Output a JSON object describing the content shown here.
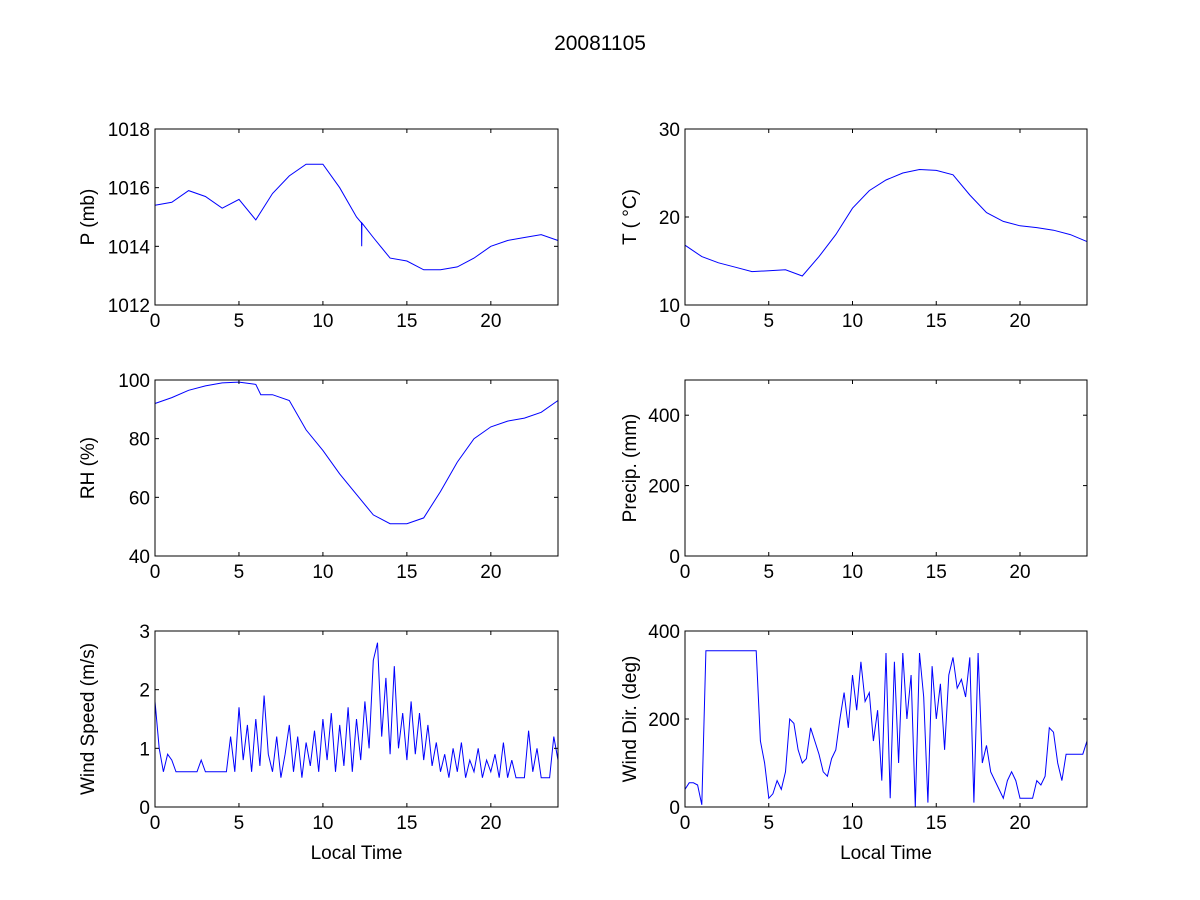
{
  "title": "20081105",
  "chart_data": [
    {
      "type": "line",
      "ylabel": "P (mb)",
      "xlabel": "",
      "xlim": [
        0,
        24
      ],
      "ylim": [
        1012,
        1018
      ],
      "xticks": [
        0,
        5,
        10,
        15,
        20
      ],
      "yticks": [
        1012,
        1014,
        1016,
        1018
      ],
      "x": [
        0,
        1,
        2,
        3,
        4,
        5,
        6,
        7,
        8,
        9,
        10,
        11,
        12,
        12.3,
        12.31,
        12.32,
        13,
        14,
        15,
        16,
        17,
        18,
        19,
        20,
        21,
        22,
        23,
        24
      ],
      "y": [
        1015.4,
        1015.5,
        1015.9,
        1015.7,
        1015.3,
        1015.6,
        1014.9,
        1015.8,
        1016.4,
        1016.8,
        1016.8,
        1016.0,
        1015.0,
        1014.8,
        1014.0,
        1014.8,
        1014.3,
        1013.6,
        1013.5,
        1013.2,
        1013.2,
        1013.3,
        1013.6,
        1014.0,
        1014.2,
        1014.3,
        1014.4,
        1014.2
      ]
    },
    {
      "type": "line",
      "ylabel": "T ( °C)",
      "xlabel": "",
      "xlim": [
        0,
        24
      ],
      "ylim": [
        10,
        30
      ],
      "xticks": [
        0,
        5,
        10,
        15,
        20
      ],
      "yticks": [
        10,
        20,
        30
      ],
      "x": [
        0,
        1,
        2,
        3,
        4,
        5,
        6,
        7,
        8,
        9,
        10,
        11,
        12,
        13,
        14,
        15,
        16,
        17,
        18,
        19,
        20,
        21,
        22,
        23,
        24
      ],
      "y": [
        16.8,
        15.5,
        14.8,
        14.3,
        13.8,
        13.9,
        14.0,
        13.3,
        15.5,
        18.0,
        21.0,
        23.0,
        24.2,
        25.0,
        25.4,
        25.3,
        24.8,
        22.5,
        20.5,
        19.5,
        19.0,
        18.8,
        18.5,
        18.0,
        17.2
      ]
    },
    {
      "type": "line",
      "ylabel": "RH (%)",
      "xlabel": "",
      "xlim": [
        0,
        24
      ],
      "ylim": [
        40,
        100
      ],
      "xticks": [
        0,
        5,
        10,
        15,
        20
      ],
      "yticks": [
        40,
        60,
        80,
        100
      ],
      "x": [
        0,
        1,
        2,
        3,
        4,
        5,
        6,
        6.3,
        7,
        8,
        9,
        10,
        11,
        12,
        13,
        14,
        15,
        16,
        17,
        18,
        19,
        20,
        21,
        22,
        23,
        24
      ],
      "y": [
        92,
        94,
        96.5,
        98,
        99,
        99.3,
        98.5,
        95,
        95,
        93,
        83,
        76,
        68,
        61,
        54,
        51,
        51,
        53,
        62,
        72,
        80,
        84,
        86,
        87,
        89,
        93
      ]
    },
    {
      "type": "line",
      "ylabel": "Precip. (mm)",
      "xlabel": "",
      "xlim": [
        0,
        24
      ],
      "ylim": [
        0,
        500
      ],
      "xticks": [
        0,
        5,
        10,
        15,
        20
      ],
      "yticks": [
        0,
        200,
        400
      ],
      "x": [],
      "y": []
    },
    {
      "type": "line",
      "ylabel": "Wind Speed (m/s)",
      "xlabel": "Local Time",
      "xlim": [
        0,
        24
      ],
      "ylim": [
        0,
        3
      ],
      "xticks": [
        0,
        5,
        10,
        15,
        20
      ],
      "yticks": [
        0,
        1,
        2,
        3
      ],
      "x_start": 0,
      "x_step": 0.25,
      "y": [
        1.8,
        1.0,
        0.6,
        0.9,
        0.8,
        0.6,
        0.6,
        0.6,
        0.6,
        0.6,
        0.6,
        0.8,
        0.6,
        0.6,
        0.6,
        0.6,
        0.6,
        0.6,
        1.2,
        0.6,
        1.7,
        0.8,
        1.4,
        0.6,
        1.5,
        0.7,
        1.9,
        0.9,
        0.6,
        1.2,
        0.5,
        0.9,
        1.4,
        0.6,
        1.2,
        0.5,
        1.1,
        0.7,
        1.3,
        0.6,
        1.5,
        0.8,
        1.6,
        0.6,
        1.4,
        0.7,
        1.7,
        0.6,
        1.5,
        0.8,
        1.8,
        1.0,
        2.5,
        2.8,
        1.2,
        2.2,
        0.9,
        2.4,
        1.0,
        1.6,
        0.8,
        1.8,
        0.9,
        1.6,
        0.8,
        1.4,
        0.7,
        1.1,
        0.6,
        0.9,
        0.5,
        1.0,
        0.6,
        1.1,
        0.5,
        0.8,
        0.6,
        1.0,
        0.5,
        0.8,
        0.6,
        0.9,
        0.5,
        1.1,
        0.5,
        0.8,
        0.5,
        0.5,
        0.5,
        1.3,
        0.6,
        1.0,
        0.5,
        0.5,
        0.5,
        1.2,
        0.8
      ]
    },
    {
      "type": "line",
      "ylabel": "Wind Dir. (deg)",
      "xlabel": "Local Time",
      "xlim": [
        0,
        24
      ],
      "ylim": [
        0,
        400
      ],
      "xticks": [
        0,
        5,
        10,
        15,
        20
      ],
      "yticks": [
        0,
        200,
        400
      ],
      "x_start": 0,
      "x_step": 0.25,
      "y": [
        40,
        55,
        55,
        50,
        5,
        355,
        355,
        355,
        355,
        355,
        355,
        355,
        355,
        355,
        355,
        355,
        355,
        355,
        150,
        100,
        20,
        30,
        60,
        40,
        80,
        200,
        190,
        130,
        100,
        110,
        180,
        150,
        120,
        80,
        70,
        110,
        130,
        200,
        260,
        180,
        300,
        220,
        330,
        240,
        260,
        150,
        220,
        60,
        350,
        20,
        330,
        100,
        350,
        200,
        300,
        0,
        350,
        250,
        10,
        320,
        200,
        280,
        130,
        300,
        340,
        270,
        290,
        250,
        340,
        10,
        350,
        100,
        140,
        80,
        60,
        40,
        20,
        60,
        80,
        60,
        20,
        20,
        20,
        20,
        60,
        50,
        70,
        180,
        170,
        100,
        60,
        120,
        120,
        120,
        120,
        120,
        150
      ]
    }
  ],
  "line_color": "#0000ff"
}
